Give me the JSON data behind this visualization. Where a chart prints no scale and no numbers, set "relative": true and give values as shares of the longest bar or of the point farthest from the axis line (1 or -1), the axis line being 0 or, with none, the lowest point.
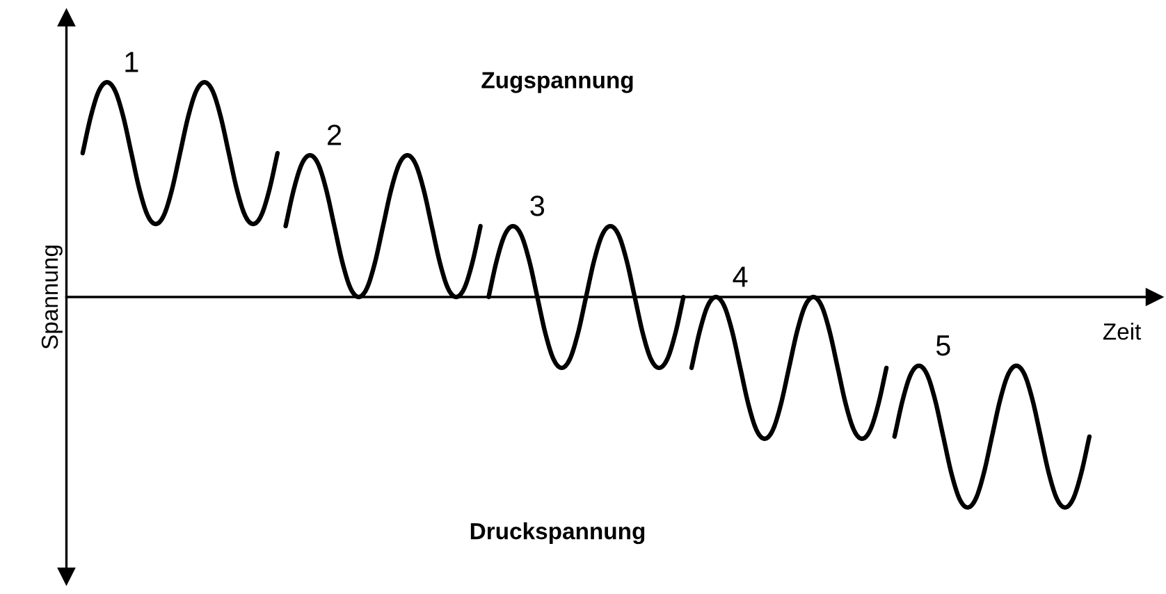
{
  "chart_data": {
    "type": "line",
    "relative": true,
    "xlabel": "Zeit",
    "ylabel": "Spannung",
    "legend": false,
    "marker": "none",
    "line_style": "solid",
    "annotations": [
      "Zugspannung",
      "Druckspannung"
    ],
    "categories": [
      null,
      null,
      null,
      null,
      null,
      null,
      null,
      null,
      null,
      null,
      null,
      null,
      null,
      null,
      null,
      null,
      null,
      null,
      null,
      null,
      null,
      null,
      null,
      null,
      null,
      null,
      null,
      null,
      null,
      null,
      null,
      null,
      null,
      null,
      null,
      null,
      null,
      null,
      null,
      null,
      null,
      null,
      null,
      null,
      null,
      null,
      null,
      null,
      null,
      null,
      null,
      null,
      null,
      null,
      null,
      null,
      null,
      null,
      null,
      null,
      null,
      null,
      null,
      null,
      null,
      null,
      null,
      null,
      null,
      null,
      null,
      null,
      null,
      null,
      null,
      null,
      null,
      null,
      null,
      null,
      null,
      null,
      null,
      null,
      null,
      null,
      null,
      null,
      null,
      null,
      null,
      null,
      null,
      null,
      null,
      null,
      null,
      null,
      null,
      null,
      null,
      null,
      null,
      null,
      null,
      null,
      null,
      null,
      null,
      null,
      null,
      null,
      null,
      null,
      null,
      null,
      null,
      null,
      null,
      null,
      null,
      null,
      null,
      null,
      null
    ],
    "series": [
      {
        "name": "1",
        "color": "#000000",
        "values": [
          0.67,
          0.84,
          0.96,
          1,
          0.96,
          0.84,
          0.67,
          0.5,
          0.38,
          0.34,
          0.38,
          0.5,
          0.67,
          0.84,
          0.96,
          1,
          0.96,
          0.84,
          0.67,
          0.5,
          0.38,
          0.34,
          0.38,
          0.5,
          0.67,
          null,
          null,
          null,
          null,
          null,
          null,
          null,
          null,
          null,
          null,
          null,
          null,
          null,
          null,
          null,
          null,
          null,
          null,
          null,
          null,
          null,
          null,
          null,
          null,
          null,
          null,
          null,
          null,
          null,
          null,
          null,
          null,
          null,
          null,
          null,
          null,
          null,
          null,
          null,
          null,
          null,
          null,
          null,
          null,
          null,
          null,
          null,
          null,
          null,
          null,
          null,
          null,
          null,
          null,
          null,
          null,
          null,
          null,
          null,
          null,
          null,
          null,
          null,
          null,
          null,
          null,
          null,
          null,
          null,
          null,
          null,
          null,
          null,
          null,
          null,
          null,
          null,
          null,
          null,
          null,
          null,
          null,
          null,
          null,
          null,
          null,
          null,
          null,
          null,
          null,
          null,
          null,
          null,
          null,
          null,
          null,
          null,
          null,
          null,
          null
        ]
      },
      {
        "name": "2",
        "color": "#000000",
        "values": [
          null,
          null,
          null,
          null,
          null,
          null,
          null,
          null,
          null,
          null,
          null,
          null,
          null,
          null,
          null,
          null,
          null,
          null,
          null,
          null,
          null,
          null,
          null,
          null,
          null,
          0.33,
          0.5,
          0.62,
          0.66,
          0.62,
          0.5,
          0.33,
          0.16,
          0.04,
          0,
          0.04,
          0.16,
          0.33,
          0.5,
          0.62,
          0.66,
          0.62,
          0.5,
          0.33,
          0.16,
          0.04,
          0,
          0.04,
          0.16,
          0.33,
          null,
          null,
          null,
          null,
          null,
          null,
          null,
          null,
          null,
          null,
          null,
          null,
          null,
          null,
          null,
          null,
          null,
          null,
          null,
          null,
          null,
          null,
          null,
          null,
          null,
          null,
          null,
          null,
          null,
          null,
          null,
          null,
          null,
          null,
          null,
          null,
          null,
          null,
          null,
          null,
          null,
          null,
          null,
          null,
          null,
          null,
          null,
          null,
          null,
          null,
          null,
          null,
          null,
          null,
          null,
          null,
          null,
          null,
          null,
          null,
          null,
          null,
          null,
          null,
          null,
          null,
          null,
          null,
          null,
          null,
          null,
          null,
          null,
          null,
          null
        ]
      },
      {
        "name": "3",
        "color": "#000000",
        "values": [
          null,
          null,
          null,
          null,
          null,
          null,
          null,
          null,
          null,
          null,
          null,
          null,
          null,
          null,
          null,
          null,
          null,
          null,
          null,
          null,
          null,
          null,
          null,
          null,
          null,
          null,
          null,
          null,
          null,
          null,
          null,
          null,
          null,
          null,
          null,
          null,
          null,
          null,
          null,
          null,
          null,
          null,
          null,
          null,
          null,
          null,
          null,
          null,
          null,
          null,
          0,
          0.17,
          0.29,
          0.33,
          0.29,
          0.17,
          0,
          -0.17,
          -0.29,
          -0.33,
          -0.29,
          -0.17,
          0,
          0.17,
          0.29,
          0.33,
          0.29,
          0.17,
          0,
          -0.17,
          -0.29,
          -0.33,
          -0.29,
          -0.17,
          0,
          null,
          null,
          null,
          null,
          null,
          null,
          null,
          null,
          null,
          null,
          null,
          null,
          null,
          null,
          null,
          null,
          null,
          null,
          null,
          null,
          null,
          null,
          null,
          null,
          null,
          null,
          null,
          null,
          null,
          null,
          null,
          null,
          null,
          null,
          null,
          null,
          null,
          null,
          null,
          null,
          null,
          null,
          null,
          null,
          null,
          null,
          null,
          null,
          null,
          null
        ]
      },
      {
        "name": "4",
        "color": "#000000",
        "values": [
          null,
          null,
          null,
          null,
          null,
          null,
          null,
          null,
          null,
          null,
          null,
          null,
          null,
          null,
          null,
          null,
          null,
          null,
          null,
          null,
          null,
          null,
          null,
          null,
          null,
          null,
          null,
          null,
          null,
          null,
          null,
          null,
          null,
          null,
          null,
          null,
          null,
          null,
          null,
          null,
          null,
          null,
          null,
          null,
          null,
          null,
          null,
          null,
          null,
          null,
          null,
          null,
          null,
          null,
          null,
          null,
          null,
          null,
          null,
          null,
          null,
          null,
          null,
          null,
          null,
          null,
          null,
          null,
          null,
          null,
          null,
          null,
          null,
          null,
          null,
          -0.33,
          -0.16,
          -0.04,
          0,
          -0.04,
          -0.16,
          -0.33,
          -0.5,
          -0.62,
          -0.66,
          -0.62,
          -0.5,
          -0.33,
          -0.16,
          -0.04,
          0,
          -0.04,
          -0.16,
          -0.33,
          -0.5,
          -0.62,
          -0.66,
          -0.62,
          -0.5,
          -0.33,
          null,
          null,
          null,
          null,
          null,
          null,
          null,
          null,
          null,
          null,
          null,
          null,
          null,
          null,
          null,
          null,
          null,
          null,
          null,
          null,
          null,
          null,
          null,
          null,
          null
        ]
      },
      {
        "name": "5",
        "color": "#000000",
        "values": [
          null,
          null,
          null,
          null,
          null,
          null,
          null,
          null,
          null,
          null,
          null,
          null,
          null,
          null,
          null,
          null,
          null,
          null,
          null,
          null,
          null,
          null,
          null,
          null,
          null,
          null,
          null,
          null,
          null,
          null,
          null,
          null,
          null,
          null,
          null,
          null,
          null,
          null,
          null,
          null,
          null,
          null,
          null,
          null,
          null,
          null,
          null,
          null,
          null,
          null,
          null,
          null,
          null,
          null,
          null,
          null,
          null,
          null,
          null,
          null,
          null,
          null,
          null,
          null,
          null,
          null,
          null,
          null,
          null,
          null,
          null,
          null,
          null,
          null,
          null,
          null,
          null,
          null,
          null,
          null,
          null,
          null,
          null,
          null,
          null,
          null,
          null,
          null,
          null,
          null,
          null,
          null,
          null,
          null,
          null,
          null,
          null,
          null,
          null,
          null,
          -0.65,
          -0.48,
          -0.36,
          -0.32,
          -0.36,
          -0.48,
          -0.65,
          -0.82,
          -0.94,
          -0.98,
          -0.94,
          -0.82,
          -0.65,
          -0.48,
          -0.36,
          -0.32,
          -0.36,
          -0.48,
          -0.65,
          -0.82,
          -0.94,
          -0.98,
          -0.94,
          -0.82,
          -0.65
        ]
      }
    ]
  }
}
